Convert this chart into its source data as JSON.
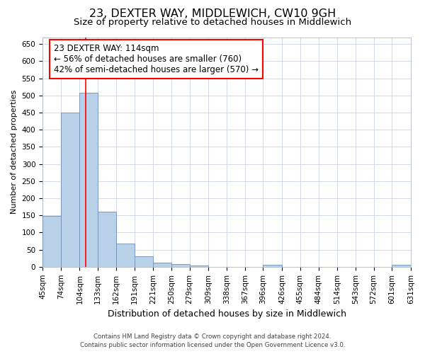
{
  "title": "23, DEXTER WAY, MIDDLEWICH, CW10 9GH",
  "subtitle": "Size of property relative to detached houses in Middlewich",
  "xlabel": "Distribution of detached houses by size in Middlewich",
  "ylabel": "Number of detached properties",
  "footer_line1": "Contains HM Land Registry data © Crown copyright and database right 2024.",
  "footer_line2": "Contains public sector information licensed under the Open Government Licence v3.0.",
  "annotation_line1": "23 DEXTER WAY: 114sqm",
  "annotation_line2": "← 56% of detached houses are smaller (760)",
  "annotation_line3": "42% of semi-detached houses are larger (570) →",
  "bar_color": "#b8d0e8",
  "bar_edge_color": "#7090b8",
  "red_line_x": 114,
  "bin_edges": [
    45,
    74,
    104,
    133,
    162,
    191,
    221,
    250,
    279,
    309,
    338,
    367,
    396,
    426,
    455,
    484,
    514,
    543,
    572,
    601,
    631
  ],
  "bar_heights": [
    148,
    450,
    507,
    160,
    68,
    30,
    13,
    8,
    4,
    0,
    0,
    0,
    5,
    0,
    0,
    0,
    0,
    0,
    0,
    5
  ],
  "ylim": [
    0,
    670
  ],
  "yticks": [
    0,
    50,
    100,
    150,
    200,
    250,
    300,
    350,
    400,
    450,
    500,
    550,
    600,
    650
  ],
  "background_color": "#ffffff",
  "grid_color": "#ccd6e8",
  "title_fontsize": 11.5,
  "subtitle_fontsize": 9.5,
  "ylabel_fontsize": 8,
  "xlabel_fontsize": 9,
  "tick_fontsize": 7.5,
  "annotation_fontsize": 8.5,
  "tick_labels": [
    "45sqm",
    "74sqm",
    "104sqm",
    "133sqm",
    "162sqm",
    "191sqm",
    "221sqm",
    "250sqm",
    "279sqm",
    "309sqm",
    "338sqm",
    "367sqm",
    "396sqm",
    "426sqm",
    "455sqm",
    "484sqm",
    "514sqm",
    "543sqm",
    "572sqm",
    "601sqm",
    "631sqm"
  ]
}
